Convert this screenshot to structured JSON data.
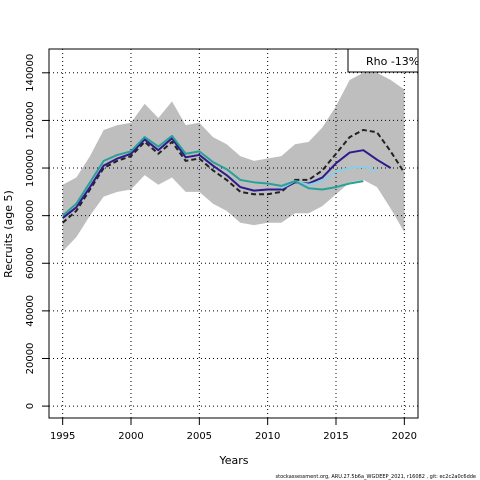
{
  "chart_data": {
    "type": "line",
    "xlabel": "Years",
    "ylabel": "Recruits (age 5)",
    "xlim": [
      1994,
      2021
    ],
    "ylim": [
      -5000,
      150000
    ],
    "x_ticks": [
      1995,
      2000,
      2005,
      2010,
      2015,
      2020
    ],
    "y_ticks": [
      0,
      20000,
      40000,
      60000,
      80000,
      100000,
      120000,
      140000
    ],
    "grid": true,
    "legend": {
      "text": "Rho -13%",
      "position": "top-right"
    },
    "band": {
      "x": [
        1995,
        1996,
        1997,
        1998,
        1999,
        2000,
        2001,
        2002,
        2003,
        2004,
        2005,
        2006,
        2007,
        2008,
        2009,
        2010,
        2011,
        2012,
        2013,
        2014,
        2015,
        2016,
        2017,
        2018,
        2019,
        2020
      ],
      "upper": [
        93000,
        96000,
        105000,
        116000,
        118000,
        119000,
        127000,
        121000,
        128000,
        118000,
        119000,
        113000,
        110000,
        105000,
        103000,
        104000,
        105000,
        110000,
        111000,
        117000,
        126000,
        137000,
        140000,
        140000,
        137000,
        133000
      ],
      "lower": [
        65000,
        71000,
        80000,
        88000,
        90000,
        91000,
        97000,
        93000,
        96000,
        90000,
        90000,
        85000,
        82000,
        77000,
        76000,
        77000,
        77000,
        81000,
        81000,
        84000,
        89000,
        94000,
        95000,
        92000,
        83000,
        73000
      ],
      "color": "#bebebe"
    },
    "series": [
      {
        "style": "dashed",
        "color": "#222222",
        "x": [
          1995,
          1996,
          1997,
          1998,
          1999,
          2000,
          2001,
          2002,
          2003,
          2004,
          2005,
          2006,
          2007,
          2008,
          2009,
          2010,
          2011,
          2012,
          2013,
          2014,
          2015,
          2016,
          2017,
          2018,
          2019,
          2020
        ],
        "values": [
          77000,
          82000,
          91000,
          100000,
          103000,
          105000,
          111000,
          106000,
          111000,
          103000,
          104000,
          99000,
          95000,
          90000,
          89000,
          89000,
          90000,
          95000,
          95000,
          99000,
          106000,
          113000,
          116000,
          115000,
          107000,
          98000
        ]
      },
      {
        "style": "solid",
        "color": "#2d1a8c",
        "x": [
          1995,
          1996,
          1997,
          1998,
          1999,
          2000,
          2001,
          2002,
          2003,
          2004,
          2005,
          2006,
          2007,
          2008,
          2009,
          2010,
          2011,
          2012,
          2013,
          2014,
          2015,
          2016,
          2017,
          2018,
          2019
        ],
        "values": [
          79000,
          83500,
          92000,
          101000,
          104000,
          106000,
          112000,
          107500,
          112500,
          104500,
          105500,
          101000,
          97000,
          92000,
          90500,
          91000,
          91000,
          94000,
          93500,
          96000,
          102000,
          106500,
          107500,
          103500,
          100000
        ]
      },
      {
        "style": "solid",
        "color": "#87ceeb",
        "x": [
          2011,
          2012,
          2013,
          2014,
          2015,
          2016,
          2017,
          2018
        ],
        "values": [
          91500,
          94500,
          93000,
          94500,
          98500,
          100000,
          100500,
          99000
        ]
      },
      {
        "style": "solid",
        "color": "#2aa198",
        "x": [
          1995,
          1996,
          1997,
          1998,
          1999,
          2000,
          2001,
          2002,
          2003,
          2004,
          2005,
          2006,
          2007,
          2008,
          2009,
          2010,
          2011,
          2012,
          2013,
          2014,
          2015,
          2016,
          2017
        ],
        "values": [
          80000,
          85000,
          94000,
          103000,
          105500,
          107000,
          113000,
          109000,
          113500,
          106000,
          107000,
          102500,
          99500,
          95000,
          94000,
          93500,
          92500,
          94500,
          91500,
          91000,
          92000,
          93500,
          94500
        ]
      }
    ]
  },
  "footer": "stockassessment.org, ARU.27.5b6a_WGDEEP_2021, r16082 , git: ec2c2a0c6dde"
}
